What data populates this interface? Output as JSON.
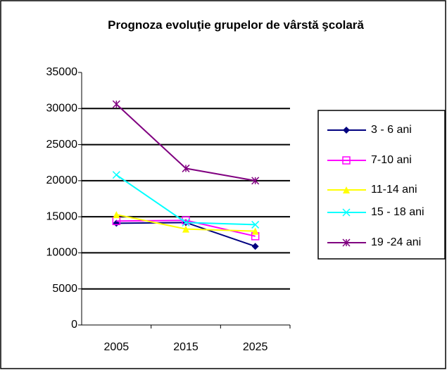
{
  "chart_data": {
    "type": "line",
    "title": "Prognoza evoluţie grupelor de vârstă şcolară",
    "categories": [
      "2005",
      "2015",
      "2025"
    ],
    "series": [
      {
        "name": "3 - 6 ani",
        "color": "#000080",
        "marker": "diamond",
        "values": [
          14100,
          14200,
          10900
        ]
      },
      {
        "name": "7-10 ani",
        "color": "#ff00ff",
        "marker": "square",
        "values": [
          14400,
          14500,
          12300
        ]
      },
      {
        "name": "11-14 ani",
        "color": "#ffff00",
        "marker": "triangle",
        "values": [
          15300,
          13300,
          13000
        ]
      },
      {
        "name": "15 - 18 ani",
        "color": "#00ffff",
        "marker": "x",
        "values": [
          20800,
          14200,
          13900
        ]
      },
      {
        "name": "19 -24 ani",
        "color": "#800080",
        "marker": "star",
        "values": [
          30600,
          21700,
          20000
        ]
      }
    ],
    "ylim": [
      0,
      35000
    ],
    "yticks": [
      0,
      5000,
      10000,
      15000,
      20000,
      25000,
      30000,
      35000
    ],
    "grid": true,
    "legend": "right"
  }
}
